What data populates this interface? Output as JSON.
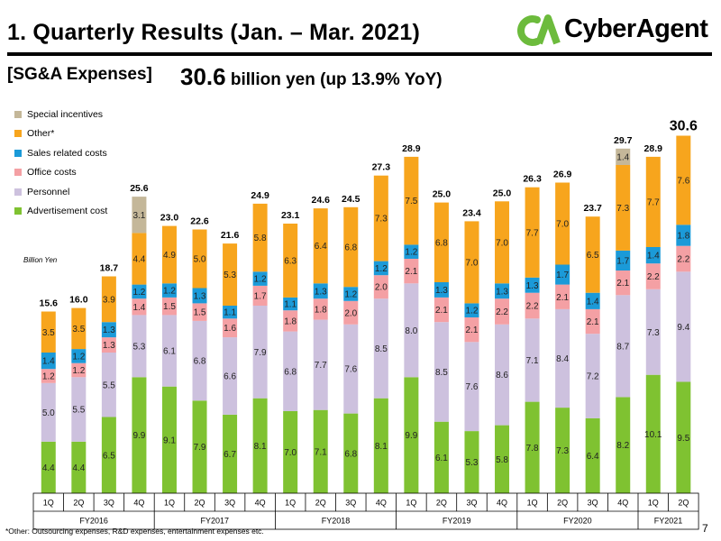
{
  "header": {
    "title": "1.  Quarterly Results (Jan. – Mar. 2021)",
    "logo_text": "CyberAgent",
    "logo_mark": "CA"
  },
  "section": {
    "label": "[SG&A Expenses]",
    "headline_value": "30.6",
    "headline_rest": " billion yen (up 13.9% YoY)"
  },
  "unit_label": "Billion  Yen",
  "footnote": "*Other: Outsourcing expenses, R&D expenses, entertainment expenses etc.",
  "page_number": "7",
  "colors": {
    "advertisement": "#7fc231",
    "personnel": "#cdc1de",
    "office": "#f4a0a4",
    "sales": "#1b9ad8",
    "other": "#f7a51d",
    "special": "#c4b799",
    "axis_box": "#000000"
  },
  "chart_data": {
    "type": "bar",
    "stacked": true,
    "categories": [
      "1Q",
      "2Q",
      "3Q",
      "4Q",
      "1Q",
      "2Q",
      "3Q",
      "4Q",
      "1Q",
      "2Q",
      "3Q",
      "4Q",
      "1Q",
      "2Q",
      "3Q",
      "4Q",
      "1Q",
      "2Q",
      "3Q",
      "4Q",
      "1Q",
      "2Q"
    ],
    "fiscal_years": [
      {
        "label": "FY2016",
        "quarters": 4
      },
      {
        "label": "FY2017",
        "quarters": 4
      },
      {
        "label": "FY2018",
        "quarters": 4
      },
      {
        "label": "FY2019",
        "quarters": 4
      },
      {
        "label": "FY2020",
        "quarters": 4
      },
      {
        "label": "FY2021",
        "quarters": 2
      }
    ],
    "totals": [
      "15.6",
      "16.0",
      "18.7",
      "25.6",
      "23.0",
      "22.6",
      "21.6",
      "24.9",
      "23.1",
      "24.6",
      "24.5",
      "27.3",
      "28.9",
      "25.0",
      "23.4",
      "25.0",
      "26.3",
      "26.9",
      "23.7",
      "29.7",
      "28.9",
      "30.6"
    ],
    "series": [
      {
        "name": "Advertisement cost",
        "key": "advertisement",
        "values": [
          4.4,
          4.4,
          6.5,
          9.9,
          9.1,
          7.9,
          6.7,
          8.1,
          7.0,
          7.1,
          6.8,
          8.1,
          9.9,
          6.1,
          5.3,
          5.8,
          7.8,
          7.3,
          6.4,
          8.2,
          10.1,
          9.5
        ],
        "labels": [
          "4.4",
          "4.4",
          "6.5",
          "9.9",
          "9.1",
          "7.9",
          "6.7",
          "8.1",
          "7.0",
          "7.1",
          "6.8",
          "8.1",
          "9.9",
          "6.1",
          "5.3",
          "5.8",
          "7.8",
          "7.3",
          "6.4",
          "8.2",
          "10.1",
          "9.5"
        ]
      },
      {
        "name": "Personnel",
        "key": "personnel",
        "values": [
          5.0,
          5.5,
          5.5,
          5.3,
          6.1,
          6.8,
          6.6,
          7.9,
          6.8,
          7.7,
          7.6,
          8.5,
          8.0,
          8.5,
          7.6,
          8.6,
          7.1,
          8.4,
          7.2,
          8.7,
          7.3,
          9.4
        ],
        "labels": [
          "5.0",
          "5.5",
          "5.5",
          "5.3",
          "6.1",
          "6.8",
          "6.6",
          "7.9",
          "6.8",
          "7.7",
          "7.6",
          "8.5",
          "8.0",
          "8.5",
          "7.6",
          "8.6",
          "7.1",
          "8.4",
          "7.2",
          "8.7",
          "7.3",
          "9.4"
        ]
      },
      {
        "name": "Office costs",
        "key": "office",
        "values": [
          1.2,
          1.2,
          1.3,
          1.4,
          1.5,
          1.5,
          1.6,
          1.7,
          1.8,
          1.8,
          2.0,
          2.0,
          2.1,
          2.1,
          2.1,
          2.2,
          2.2,
          2.1,
          2.1,
          2.1,
          2.2,
          2.2
        ],
        "labels": [
          "1.2",
          "1.2",
          "1.3",
          "1.4",
          "1.5",
          "1.5",
          "1.6",
          "1.7",
          "1.8",
          "1.8",
          "2.0",
          "2.0",
          "2.1",
          "2.1",
          "2.1",
          "2.2",
          "2.2",
          "2.1",
          "2.1",
          "2.1",
          "2.2",
          "2.2"
        ]
      },
      {
        "name": "Sales related costs",
        "key": "sales",
        "values": [
          1.4,
          1.2,
          1.3,
          1.2,
          1.2,
          1.3,
          1.1,
          1.2,
          1.1,
          1.3,
          1.2,
          1.2,
          1.2,
          1.3,
          1.2,
          1.3,
          1.3,
          1.7,
          1.4,
          1.7,
          1.4,
          1.8
        ],
        "labels": [
          "1.4",
          "1.2",
          "1.3",
          "1.2",
          "1.2",
          "1.3",
          "1.1",
          "1.2",
          "1.1",
          "1.3",
          "1.2",
          "1.2",
          "1.2",
          "1.3",
          "1.2",
          "1.3",
          "1.3",
          "1.7",
          "1.4",
          "1.7",
          "1.4",
          "1.8"
        ]
      },
      {
        "name": "Other*",
        "key": "other",
        "values": [
          3.5,
          3.5,
          3.9,
          4.4,
          4.9,
          5.0,
          5.3,
          5.8,
          6.3,
          6.4,
          6.8,
          7.3,
          7.5,
          6.8,
          7.0,
          7.0,
          7.7,
          7.0,
          6.5,
          7.3,
          7.7,
          7.6
        ],
        "labels": [
          "3.5",
          "3.5",
          "3.9",
          "4.4",
          "4.9",
          "5.0",
          "5.3",
          "5.8",
          "6.3",
          "6.4",
          "6.8",
          "7.3",
          "7.5",
          "6.8",
          "7.0",
          "7.0",
          "7.7",
          "7.0",
          "6.5",
          "7.3",
          "7.7",
          "7.6"
        ]
      },
      {
        "name": "Special incentives",
        "key": "special",
        "values": [
          0,
          0,
          0,
          3.1,
          0,
          0,
          0,
          0,
          0,
          0,
          0,
          0,
          0,
          0,
          0,
          0,
          0,
          0,
          0,
          1.4,
          0,
          0
        ],
        "labels": [
          "",
          "",
          "",
          "3.1",
          "",
          "",
          "",
          "",
          "",
          "",
          "",
          "",
          "",
          "",
          "",
          "",
          "",
          "",
          "",
          "1.4",
          "",
          ""
        ]
      }
    ],
    "legend_order": [
      "special",
      "other",
      "sales",
      "office",
      "personnel",
      "advertisement"
    ],
    "legend_placement": "top-left"
  }
}
